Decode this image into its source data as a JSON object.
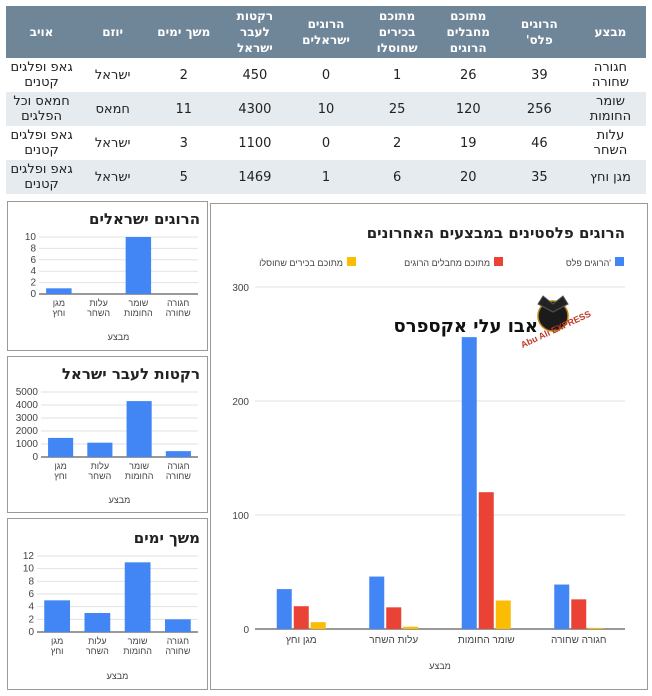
{
  "table": {
    "headers": [
      "מבצע",
      "הרוגים פלס'",
      "מתוכם מחבלים הרוגים",
      "מתוכם בכירים שחוסלו",
      "הרוגים ישראלים",
      "רקטות לעבר ישראל",
      "משך ימים",
      "יוזם",
      "אויב"
    ],
    "rows": [
      [
        "חגורה שחורה",
        "39",
        "26",
        "1",
        "0",
        "450",
        "2",
        "ישראל",
        "גאפ ופלגים קטנים"
      ],
      [
        "שומר החומות",
        "256",
        "120",
        "25",
        "10",
        "4300",
        "11",
        "חמאס",
        "חמאס וכל הפלגים"
      ],
      [
        "עלות השחר",
        "46",
        "19",
        "2",
        "0",
        "1100",
        "3",
        "ישראל",
        "גאפ ופלגים קטנים"
      ],
      [
        "מגן וחץ",
        "35",
        "20",
        "6",
        "1",
        "1469",
        "5",
        "ישראל",
        "גאפ ופלגים קטנים"
      ]
    ]
  },
  "watermark": {
    "text": "אבו עלי אקספרס",
    "logo_text": "Abu Ali EXPRESS",
    "logo_icon": "eagle-emblem"
  },
  "colors": {
    "blue": "#4285f4",
    "red": "#ea4335",
    "yellow": "#fbbc04",
    "header": "#6f8699"
  },
  "chart_data": [
    {
      "id": "israeli",
      "type": "bar",
      "title": "הרוגים ישראלים",
      "xlabel": "מבצע",
      "categories": [
        "חגורה שחורה",
        "שומר החומות",
        "עלות השחר",
        "מגן וחץ"
      ],
      "values": [
        0,
        10,
        0,
        1
      ],
      "ylim": [
        0,
        10
      ],
      "yticks": [
        0,
        2,
        4,
        6,
        8,
        10
      ],
      "color": "#4285f4",
      "grid": true
    },
    {
      "id": "rockets",
      "type": "bar",
      "title": "רקטות לעבר ישראל",
      "xlabel": "מבצע",
      "categories": [
        "חגורה שחורה",
        "שומר החומות",
        "עלות השחר",
        "מגן וחץ"
      ],
      "values": [
        450,
        4300,
        1100,
        1469
      ],
      "ylim": [
        0,
        5000
      ],
      "yticks": [
        0,
        1000,
        2000,
        3000,
        4000,
        5000
      ],
      "color": "#4285f4",
      "grid": true
    },
    {
      "id": "days",
      "type": "bar",
      "title": "משך ימים",
      "xlabel": "מבצע",
      "categories": [
        "חגורה שחורה",
        "שומר החומות",
        "עלות השחר",
        "מגן וחץ"
      ],
      "values": [
        2,
        11,
        3,
        5
      ],
      "ylim": [
        0,
        12
      ],
      "yticks": [
        0,
        2,
        4,
        6,
        8,
        10,
        12
      ],
      "color": "#4285f4",
      "grid": true
    },
    {
      "id": "palestinian",
      "type": "bar",
      "title": "הרוגים פלסטינים במבצעים האחרונים",
      "xlabel": "מבצע",
      "categories": [
        "חגורה שחורה",
        "שומר החומות",
        "עלות השחר",
        "מגן וחץ"
      ],
      "series": [
        {
          "name": "הרוגים פלס'",
          "values": [
            39,
            256,
            46,
            35
          ],
          "color": "#4285f4"
        },
        {
          "name": "מתוכם מחבלים הרוגים",
          "values": [
            26,
            120,
            19,
            20
          ],
          "color": "#ea4335"
        },
        {
          "name": "מתוכם בכירים שחוסלו",
          "values": [
            1,
            25,
            2,
            6
          ],
          "color": "#fbbc04"
        }
      ],
      "ylim": [
        0,
        300
      ],
      "yticks": [
        0,
        100,
        200,
        300
      ],
      "legend": "top",
      "grid": true
    }
  ]
}
